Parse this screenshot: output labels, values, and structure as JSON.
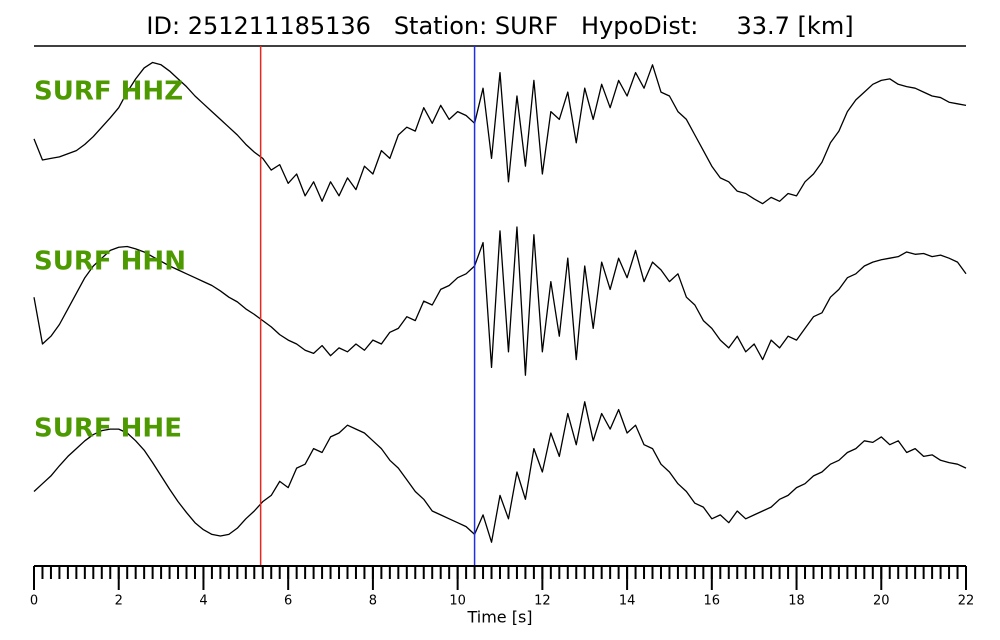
{
  "chart_data": {
    "type": "line",
    "title": "ID: 251211185136   Station: SURF   HypoDist:     33.7 [km]",
    "xlabel": "Time [s]",
    "xlim": [
      0,
      22
    ],
    "xticks": [
      0,
      2,
      4,
      6,
      8,
      10,
      12,
      14,
      16,
      18,
      20,
      22
    ],
    "xminorticks": [
      0,
      0.2,
      0.4,
      0.6,
      0.8,
      1,
      1.2,
      1.4,
      1.6,
      1.8,
      2,
      2.2,
      2.4,
      2.6,
      2.8,
      3,
      3.2,
      3.4,
      3.6,
      3.8,
      4,
      4.2,
      4.4,
      4.6,
      4.8,
      5,
      5.2,
      5.4,
      5.6,
      5.8,
      6,
      6.2,
      6.4,
      6.6,
      6.8,
      7,
      7.2,
      7.4,
      7.6,
      7.8,
      8,
      8.2,
      8.4,
      8.6,
      8.8,
      9,
      9.2,
      9.4,
      9.6,
      9.8,
      10,
      10.2,
      10.4,
      10.6,
      10.8,
      11,
      11.2,
      11.4,
      11.6,
      11.8,
      12,
      12.2,
      12.4,
      12.6,
      12.8,
      13,
      13.2,
      13.4,
      13.6,
      13.8,
      14,
      14.2,
      14.4,
      14.6,
      14.8,
      15,
      15.2,
      15.4,
      15.6,
      15.8,
      16,
      16.2,
      16.4,
      16.6,
      16.8,
      17,
      17.2,
      17.4,
      17.6,
      17.8,
      18,
      18.2,
      18.4,
      18.6,
      18.8,
      19,
      19.2,
      19.4,
      19.6,
      19.8,
      20,
      20.2,
      20.4,
      20.6,
      20.8,
      21,
      21.2,
      21.4,
      21.6,
      21.8,
      22
    ],
    "markers": [
      {
        "x": 5.35,
        "color": "#e8251f"
      },
      {
        "x": 10.4,
        "color": "#1f2ee8"
      }
    ],
    "label_color": "#4c9900",
    "ylim": [
      -1,
      1
    ],
    "x": [
      0,
      0.2,
      0.4,
      0.6,
      0.8,
      1,
      1.2,
      1.4,
      1.6,
      1.8,
      2,
      2.2,
      2.4,
      2.6,
      2.8,
      3,
      3.2,
      3.4,
      3.6,
      3.8,
      4,
      4.2,
      4.4,
      4.6,
      4.8,
      5,
      5.2,
      5.4,
      5.6,
      5.8,
      6,
      6.2,
      6.4,
      6.6,
      6.8,
      7,
      7.2,
      7.4,
      7.6,
      7.8,
      8,
      8.2,
      8.4,
      8.6,
      8.8,
      9,
      9.2,
      9.4,
      9.6,
      9.8,
      10,
      10.2,
      10.4,
      10.6,
      10.8,
      11,
      11.2,
      11.4,
      11.6,
      11.8,
      12,
      12.2,
      12.4,
      12.6,
      12.8,
      13,
      13.2,
      13.4,
      13.6,
      13.8,
      14,
      14.2,
      14.4,
      14.6,
      14.8,
      15,
      15.2,
      15.4,
      15.6,
      15.8,
      16,
      16.2,
      16.4,
      16.6,
      16.8,
      17,
      17.2,
      17.4,
      17.6,
      17.8,
      18,
      18.2,
      18.4,
      18.6,
      18.8,
      19,
      19.2,
      19.4,
      19.6,
      19.8,
      20,
      20.2,
      20.4,
      20.6,
      20.8,
      21,
      21.2,
      21.4,
      21.6,
      21.8,
      22
    ],
    "series": [
      {
        "name": "SURF HHZ",
        "color": "#000000",
        "values": [
          -0.05,
          -0.32,
          -0.3,
          -0.28,
          -0.24,
          -0.2,
          -0.12,
          -0.02,
          0.1,
          0.22,
          0.35,
          0.55,
          0.72,
          0.86,
          0.93,
          0.9,
          0.82,
          0.72,
          0.62,
          0.5,
          0.4,
          0.3,
          0.2,
          0.1,
          0,
          -0.12,
          -0.22,
          -0.3,
          -0.45,
          -0.38,
          -0.62,
          -0.5,
          -0.78,
          -0.6,
          -0.85,
          -0.6,
          -0.78,
          -0.55,
          -0.7,
          -0.4,
          -0.5,
          -0.2,
          -0.3,
          0,
          0.1,
          0.05,
          0.35,
          0.15,
          0.38,
          0.2,
          0.3,
          0.25,
          0.15,
          0.6,
          -0.3,
          0.8,
          -0.6,
          0.5,
          -0.4,
          0.7,
          -0.5,
          0.3,
          0.2,
          0.55,
          -0.1,
          0.6,
          0.2,
          0.65,
          0.35,
          0.7,
          0.5,
          0.8,
          0.6,
          0.9,
          0.55,
          0.5,
          0.3,
          0.2,
          0,
          -0.2,
          -0.4,
          -0.55,
          -0.6,
          -0.72,
          -0.75,
          -0.82,
          -0.88,
          -0.8,
          -0.85,
          -0.75,
          -0.78,
          -0.6,
          -0.5,
          -0.35,
          -0.1,
          0.05,
          0.3,
          0.45,
          0.55,
          0.65,
          0.7,
          0.72,
          0.65,
          0.62,
          0.6,
          0.55,
          0.5,
          0.48,
          0.42,
          0.4,
          0.38
        ]
      },
      {
        "name": "SURF HHN",
        "color": "#000000",
        "values": [
          0.1,
          -0.5,
          -0.4,
          -0.25,
          -0.05,
          0.15,
          0.35,
          0.5,
          0.6,
          0.7,
          0.74,
          0.75,
          0.72,
          0.68,
          0.62,
          0.56,
          0.5,
          0.45,
          0.4,
          0.35,
          0.3,
          0.25,
          0.18,
          0.1,
          0.04,
          -0.05,
          -0.12,
          -0.2,
          -0.28,
          -0.38,
          -0.45,
          -0.5,
          -0.58,
          -0.62,
          -0.52,
          -0.65,
          -0.55,
          -0.6,
          -0.5,
          -0.58,
          -0.45,
          -0.5,
          -0.35,
          -0.3,
          -0.15,
          -0.2,
          0.05,
          0,
          0.2,
          0.25,
          0.35,
          0.4,
          0.5,
          0.8,
          -0.8,
          0.95,
          -0.6,
          1,
          -0.9,
          0.9,
          -0.6,
          0.3,
          -0.4,
          0.6,
          -0.7,
          0.5,
          -0.3,
          0.55,
          0.2,
          0.6,
          0.35,
          0.7,
          0.3,
          0.55,
          0.45,
          0.3,
          0.4,
          0.1,
          0,
          -0.2,
          -0.3,
          -0.45,
          -0.55,
          -0.4,
          -0.6,
          -0.5,
          -0.7,
          -0.45,
          -0.55,
          -0.4,
          -0.45,
          -0.3,
          -0.15,
          -0.1,
          0.1,
          0.2,
          0.35,
          0.4,
          0.5,
          0.55,
          0.58,
          0.6,
          0.62,
          0.68,
          0.65,
          0.66,
          0.62,
          0.64,
          0.6,
          0.55,
          0.4
        ]
      },
      {
        "name": "SURF HHE",
        "color": "#000000",
        "values": [
          -0.25,
          -0.15,
          -0.05,
          0.08,
          0.2,
          0.3,
          0.4,
          0.48,
          0.53,
          0.55,
          0.55,
          0.5,
          0.4,
          0.28,
          0.12,
          -0.05,
          -0.22,
          -0.38,
          -0.52,
          -0.65,
          -0.74,
          -0.8,
          -0.82,
          -0.8,
          -0.72,
          -0.6,
          -0.5,
          -0.38,
          -0.3,
          -0.12,
          -0.2,
          0.05,
          0.1,
          0.3,
          0.25,
          0.45,
          0.5,
          0.6,
          0.55,
          0.5,
          0.4,
          0.3,
          0.15,
          0.05,
          -0.1,
          -0.25,
          -0.35,
          -0.5,
          -0.55,
          -0.6,
          -0.65,
          -0.7,
          -0.8,
          -0.55,
          -0.9,
          -0.3,
          -0.6,
          0,
          -0.35,
          0.3,
          0,
          0.5,
          0.2,
          0.75,
          0.35,
          0.9,
          0.4,
          0.75,
          0.55,
          0.8,
          0.5,
          0.6,
          0.35,
          0.3,
          0.1,
          0,
          -0.15,
          -0.25,
          -0.4,
          -0.45,
          -0.6,
          -0.55,
          -0.65,
          -0.5,
          -0.6,
          -0.55,
          -0.5,
          -0.45,
          -0.35,
          -0.3,
          -0.2,
          -0.15,
          -0.05,
          0,
          0.1,
          0.15,
          0.25,
          0.3,
          0.4,
          0.38,
          0.45,
          0.35,
          0.4,
          0.25,
          0.3,
          0.2,
          0.22,
          0.15,
          0.12,
          0.1,
          0.05
        ]
      }
    ]
  }
}
